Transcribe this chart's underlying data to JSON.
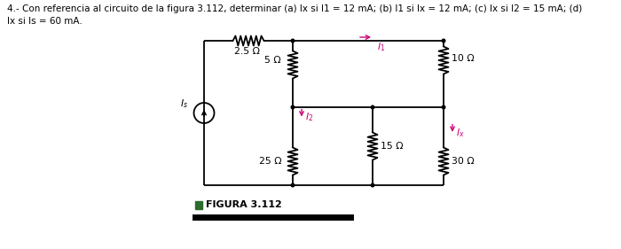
{
  "title_line1": "4.- Con referencia al circuito de la figura 3.112, determinar (a) Ix si I1 = 12 mA; (b) I1 si Ix = 12 mA; (c) Ix si I2 = 15 mA; (d)",
  "title_line2": "Ix si Is = 60 mA.",
  "figura_label": "FIGURA 3.112",
  "bg_color": "#ffffff",
  "text_color": "#000000",
  "magenta_color": "#cc0077",
  "line_color": "#000000",
  "fig_width": 7.0,
  "fig_height": 2.81,
  "dpi": 100,
  "xl": 2.3,
  "xm1": 3.3,
  "xm2": 4.2,
  "xr": 5.0,
  "yt": 2.35,
  "ymid": 1.6,
  "ybot": 0.72
}
